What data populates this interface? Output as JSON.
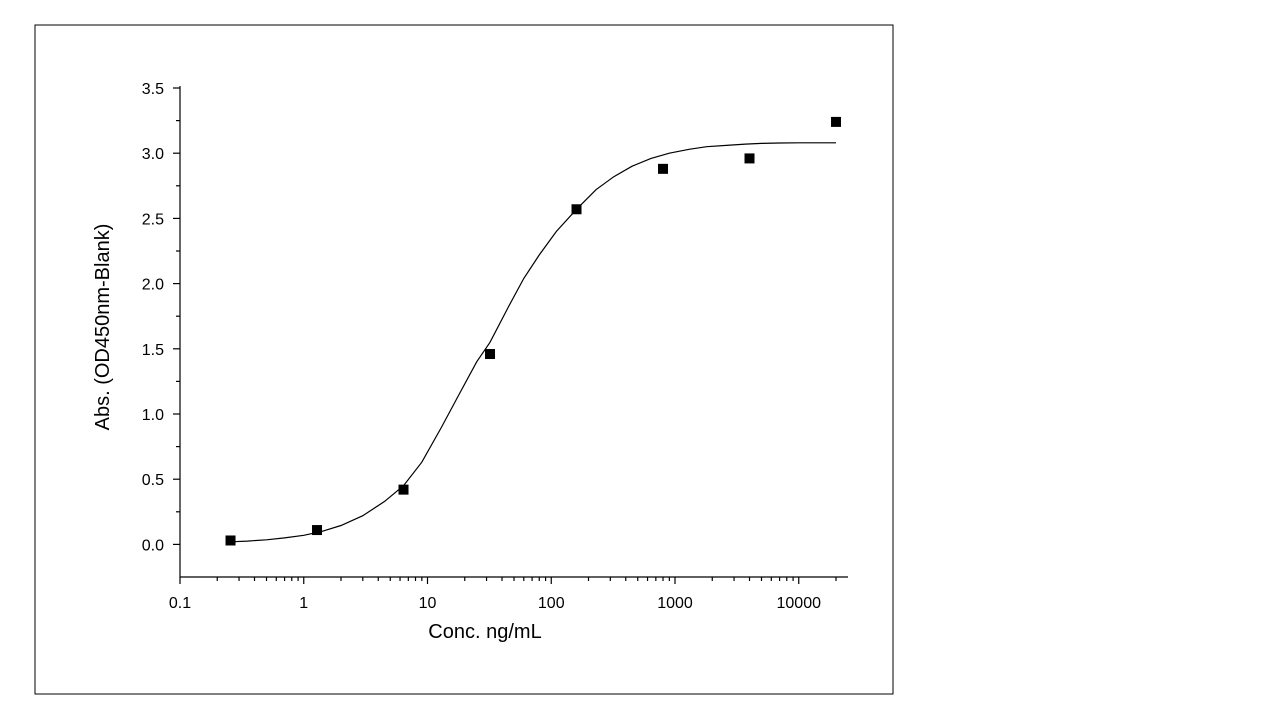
{
  "chart_data": {
    "type": "scatter",
    "title": "",
    "xlabel": "Conc. ng/mL",
    "ylabel": "Abs. (OD450nm-Blank)",
    "x_scale": "log",
    "xlim": [
      0.1,
      25000
    ],
    "ylim": [
      -0.25,
      3.5
    ],
    "x_ticks": [
      0.1,
      1,
      10,
      100,
      1000,
      10000
    ],
    "x_tick_labels": [
      "0.1",
      "1",
      "10",
      "100",
      "1000",
      "10000"
    ],
    "y_ticks": [
      0.0,
      0.5,
      1.0,
      1.5,
      2.0,
      2.5,
      3.0,
      3.5
    ],
    "y_tick_labels": [
      "0.0",
      "0.5",
      "1.0",
      "1.5",
      "2.0",
      "2.5",
      "3.0",
      "3.5"
    ],
    "grid": false,
    "legend": "none",
    "series": [
      {
        "marker": "square",
        "x": [
          0.256,
          1.28,
          6.4,
          32,
          160,
          800,
          4000,
          20000
        ],
        "y": [
          0.03,
          0.11,
          0.42,
          1.46,
          2.57,
          2.88,
          2.96,
          3.24
        ]
      }
    ],
    "fit": {
      "model": "4-parameter logistic",
      "x": [
        0.256,
        0.35,
        0.5,
        0.7,
        1,
        1.4,
        2,
        3,
        4.5,
        6.4,
        9,
        13,
        18,
        25,
        32,
        45,
        60,
        80,
        110,
        160,
        230,
        320,
        450,
        640,
        900,
        1300,
        1800,
        2600,
        3700,
        5000,
        7000,
        10000,
        14000,
        20000
      ],
      "y": [
        0.02,
        0.025,
        0.035,
        0.05,
        0.07,
        0.1,
        0.145,
        0.22,
        0.33,
        0.45,
        0.63,
        0.9,
        1.15,
        1.4,
        1.55,
        1.82,
        2.04,
        2.22,
        2.4,
        2.57,
        2.72,
        2.82,
        2.9,
        2.96,
        3.0,
        3.03,
        3.05,
        3.06,
        3.07,
        3.075,
        3.078,
        3.08,
        3.08,
        3.08
      ],
      "color": "#000000"
    },
    "colors": {
      "marker": "#000000",
      "line": "#000000",
      "axis": "#000000"
    }
  }
}
